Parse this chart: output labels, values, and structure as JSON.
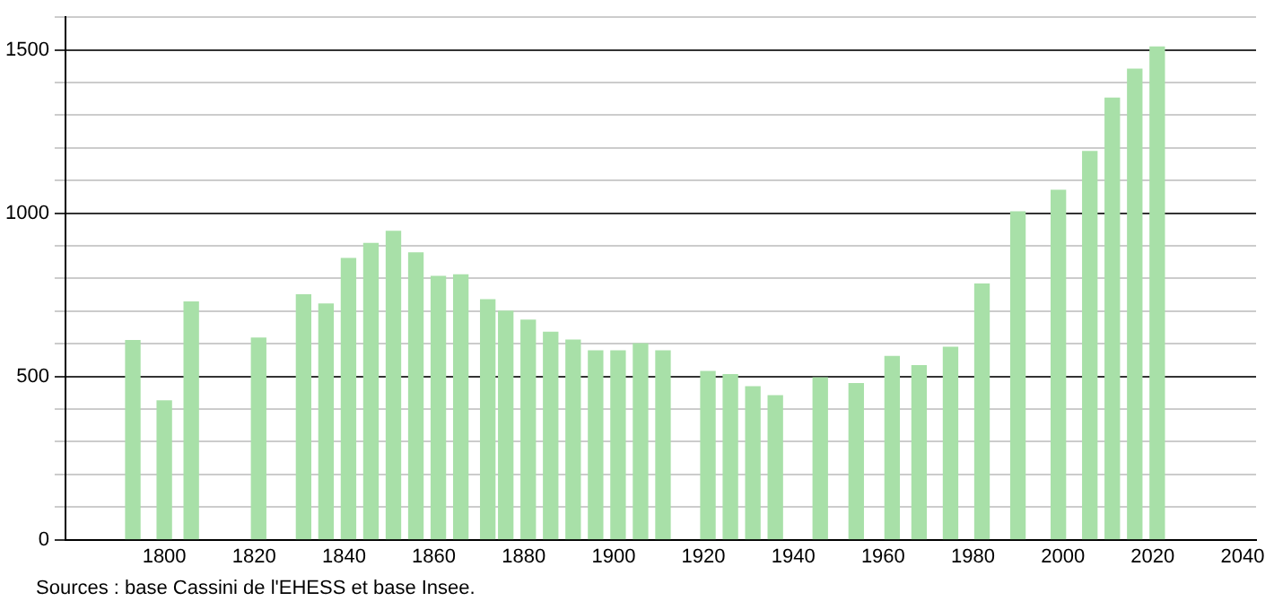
{
  "chart_data": {
    "type": "bar",
    "x": [
      1793,
      1800,
      1806,
      1821,
      1831,
      1836,
      1841,
      1846,
      1851,
      1856,
      1861,
      1866,
      1872,
      1876,
      1881,
      1886,
      1891,
      1896,
      1901,
      1906,
      1911,
      1921,
      1926,
      1931,
      1936,
      1946,
      1954,
      1962,
      1968,
      1975,
      1982,
      1990,
      1999,
      2006,
      2011,
      2016,
      2021
    ],
    "values": [
      610,
      425,
      728,
      617,
      750,
      722,
      861,
      907,
      944,
      878,
      806,
      811,
      735,
      700,
      672,
      635,
      611,
      578,
      578,
      600,
      578,
      515,
      505,
      468,
      441,
      496,
      478,
      561,
      533,
      589,
      783,
      1004,
      1070,
      1189,
      1352,
      1441,
      1509
    ],
    "color": "#a8e0a8",
    "xlim": [
      1778,
      2043
    ],
    "xticks": [
      1800,
      1820,
      1840,
      1860,
      1880,
      1900,
      1920,
      1940,
      1960,
      1980,
      2000,
      2020,
      2040
    ],
    "ylim": [
      0,
      1600
    ],
    "yticks": [
      0,
      {
        "value": 100,
        "label": null
      },
      {
        "value": 200,
        "label": null
      },
      {
        "value": 300,
        "label": null
      },
      {
        "value": 400,
        "label": null
      },
      500,
      {
        "value": 600,
        "label": null
      },
      {
        "value": 700,
        "label": null
      },
      {
        "value": 800,
        "label": null
      },
      {
        "value": 900,
        "label": null
      },
      1000,
      {
        "value": 1100,
        "label": null
      },
      {
        "value": 1200,
        "label": null
      },
      {
        "value": 1300,
        "label": null
      },
      {
        "value": 1400,
        "label": null
      },
      1500,
      {
        "value": 1600,
        "label": null
      }
    ],
    "grid": "y",
    "legend": false,
    "annotations": [
      "Sources : base Cassini de l'EHESS et base Insee."
    ]
  }
}
